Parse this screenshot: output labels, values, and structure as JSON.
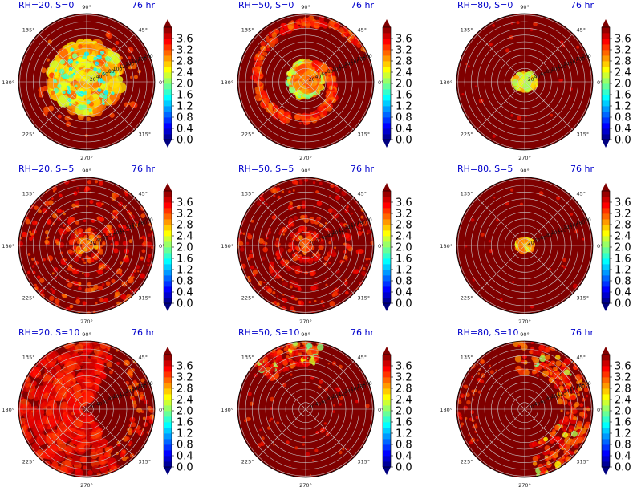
{
  "chart_data": {
    "type": "polar-heatmap",
    "figure_layout": "3 rows x 3 columns",
    "time_label": "76 hr",
    "theta_ticks": [
      "0°",
      "45°",
      "90°",
      "135°",
      "180°",
      "225°",
      "270°",
      "315°"
    ],
    "radial_ticks": [
      "20",
      "40",
      "60",
      "80",
      "100",
      "120",
      "140",
      "160",
      "180",
      "200"
    ],
    "radial_label_angle_deg": 22.5,
    "colorbar": {
      "colormap": "jet",
      "ticks": [
        "0.0",
        "0.4",
        "0.8",
        "1.2",
        "1.6",
        "2.0",
        "2.4",
        "2.8",
        "3.2",
        "3.6"
      ],
      "range": [
        0.0,
        4.0
      ],
      "extend": "both"
    },
    "panels": [
      {
        "title": "RH=20, S=0",
        "rh": 20,
        "s": 0,
        "pattern": "core-ring",
        "core_radius_frac": 0.52,
        "core_level": 3.2,
        "ring_level": 2.6,
        "background_level": 4.0
      },
      {
        "title": "RH=50, S=0",
        "rh": 50,
        "s": 0,
        "pattern": "eyewall-spiral",
        "core_radius_frac": 0.22,
        "core_level": 2.8,
        "ring_level": 1.8,
        "background_level": 4.0
      },
      {
        "title": "RH=80, S=0",
        "rh": 80,
        "s": 0,
        "pattern": "small-core",
        "core_radius_frac": 0.12,
        "core_level": 2.9,
        "ring_level": 2.3,
        "background_level": 4.0
      },
      {
        "title": "RH=20, S=5",
        "rh": 20,
        "s": 5,
        "pattern": "scattered-rings",
        "core_radius_frac": 0.2,
        "core_level": 3.3,
        "ring_level": 3.0,
        "background_level": 4.0
      },
      {
        "title": "RH=50, S=5",
        "rh": 50,
        "s": 5,
        "pattern": "scattered-rings",
        "core_radius_frac": 0.15,
        "core_level": 3.4,
        "ring_level": 3.1,
        "background_level": 4.0
      },
      {
        "title": "RH=80, S=5",
        "rh": 80,
        "s": 5,
        "pattern": "small-core",
        "core_radius_frac": 0.08,
        "core_level": 3.1,
        "ring_level": 2.9,
        "background_level": 4.0
      },
      {
        "title": "RH=20, S=10",
        "rh": 20,
        "s": 10,
        "pattern": "broad-west",
        "core_radius_frac": 0.0,
        "core_level": 3.3,
        "ring_level": 3.2,
        "background_level": 4.0
      },
      {
        "title": "RH=50, S=10",
        "rh": 50,
        "s": 10,
        "pattern": "north-patches",
        "core_radius_frac": 0.0,
        "core_level": 3.2,
        "ring_level": 3.0,
        "background_level": 4.0
      },
      {
        "title": "RH=80, S=10",
        "rh": 80,
        "s": 10,
        "pattern": "east-patches",
        "core_radius_frac": 0.0,
        "core_level": 3.1,
        "ring_level": 2.9,
        "background_level": 4.0
      }
    ]
  },
  "colors": {
    "title_text": "#0000cc",
    "background_dark_red": "#800000",
    "grid": "#cccccc"
  }
}
